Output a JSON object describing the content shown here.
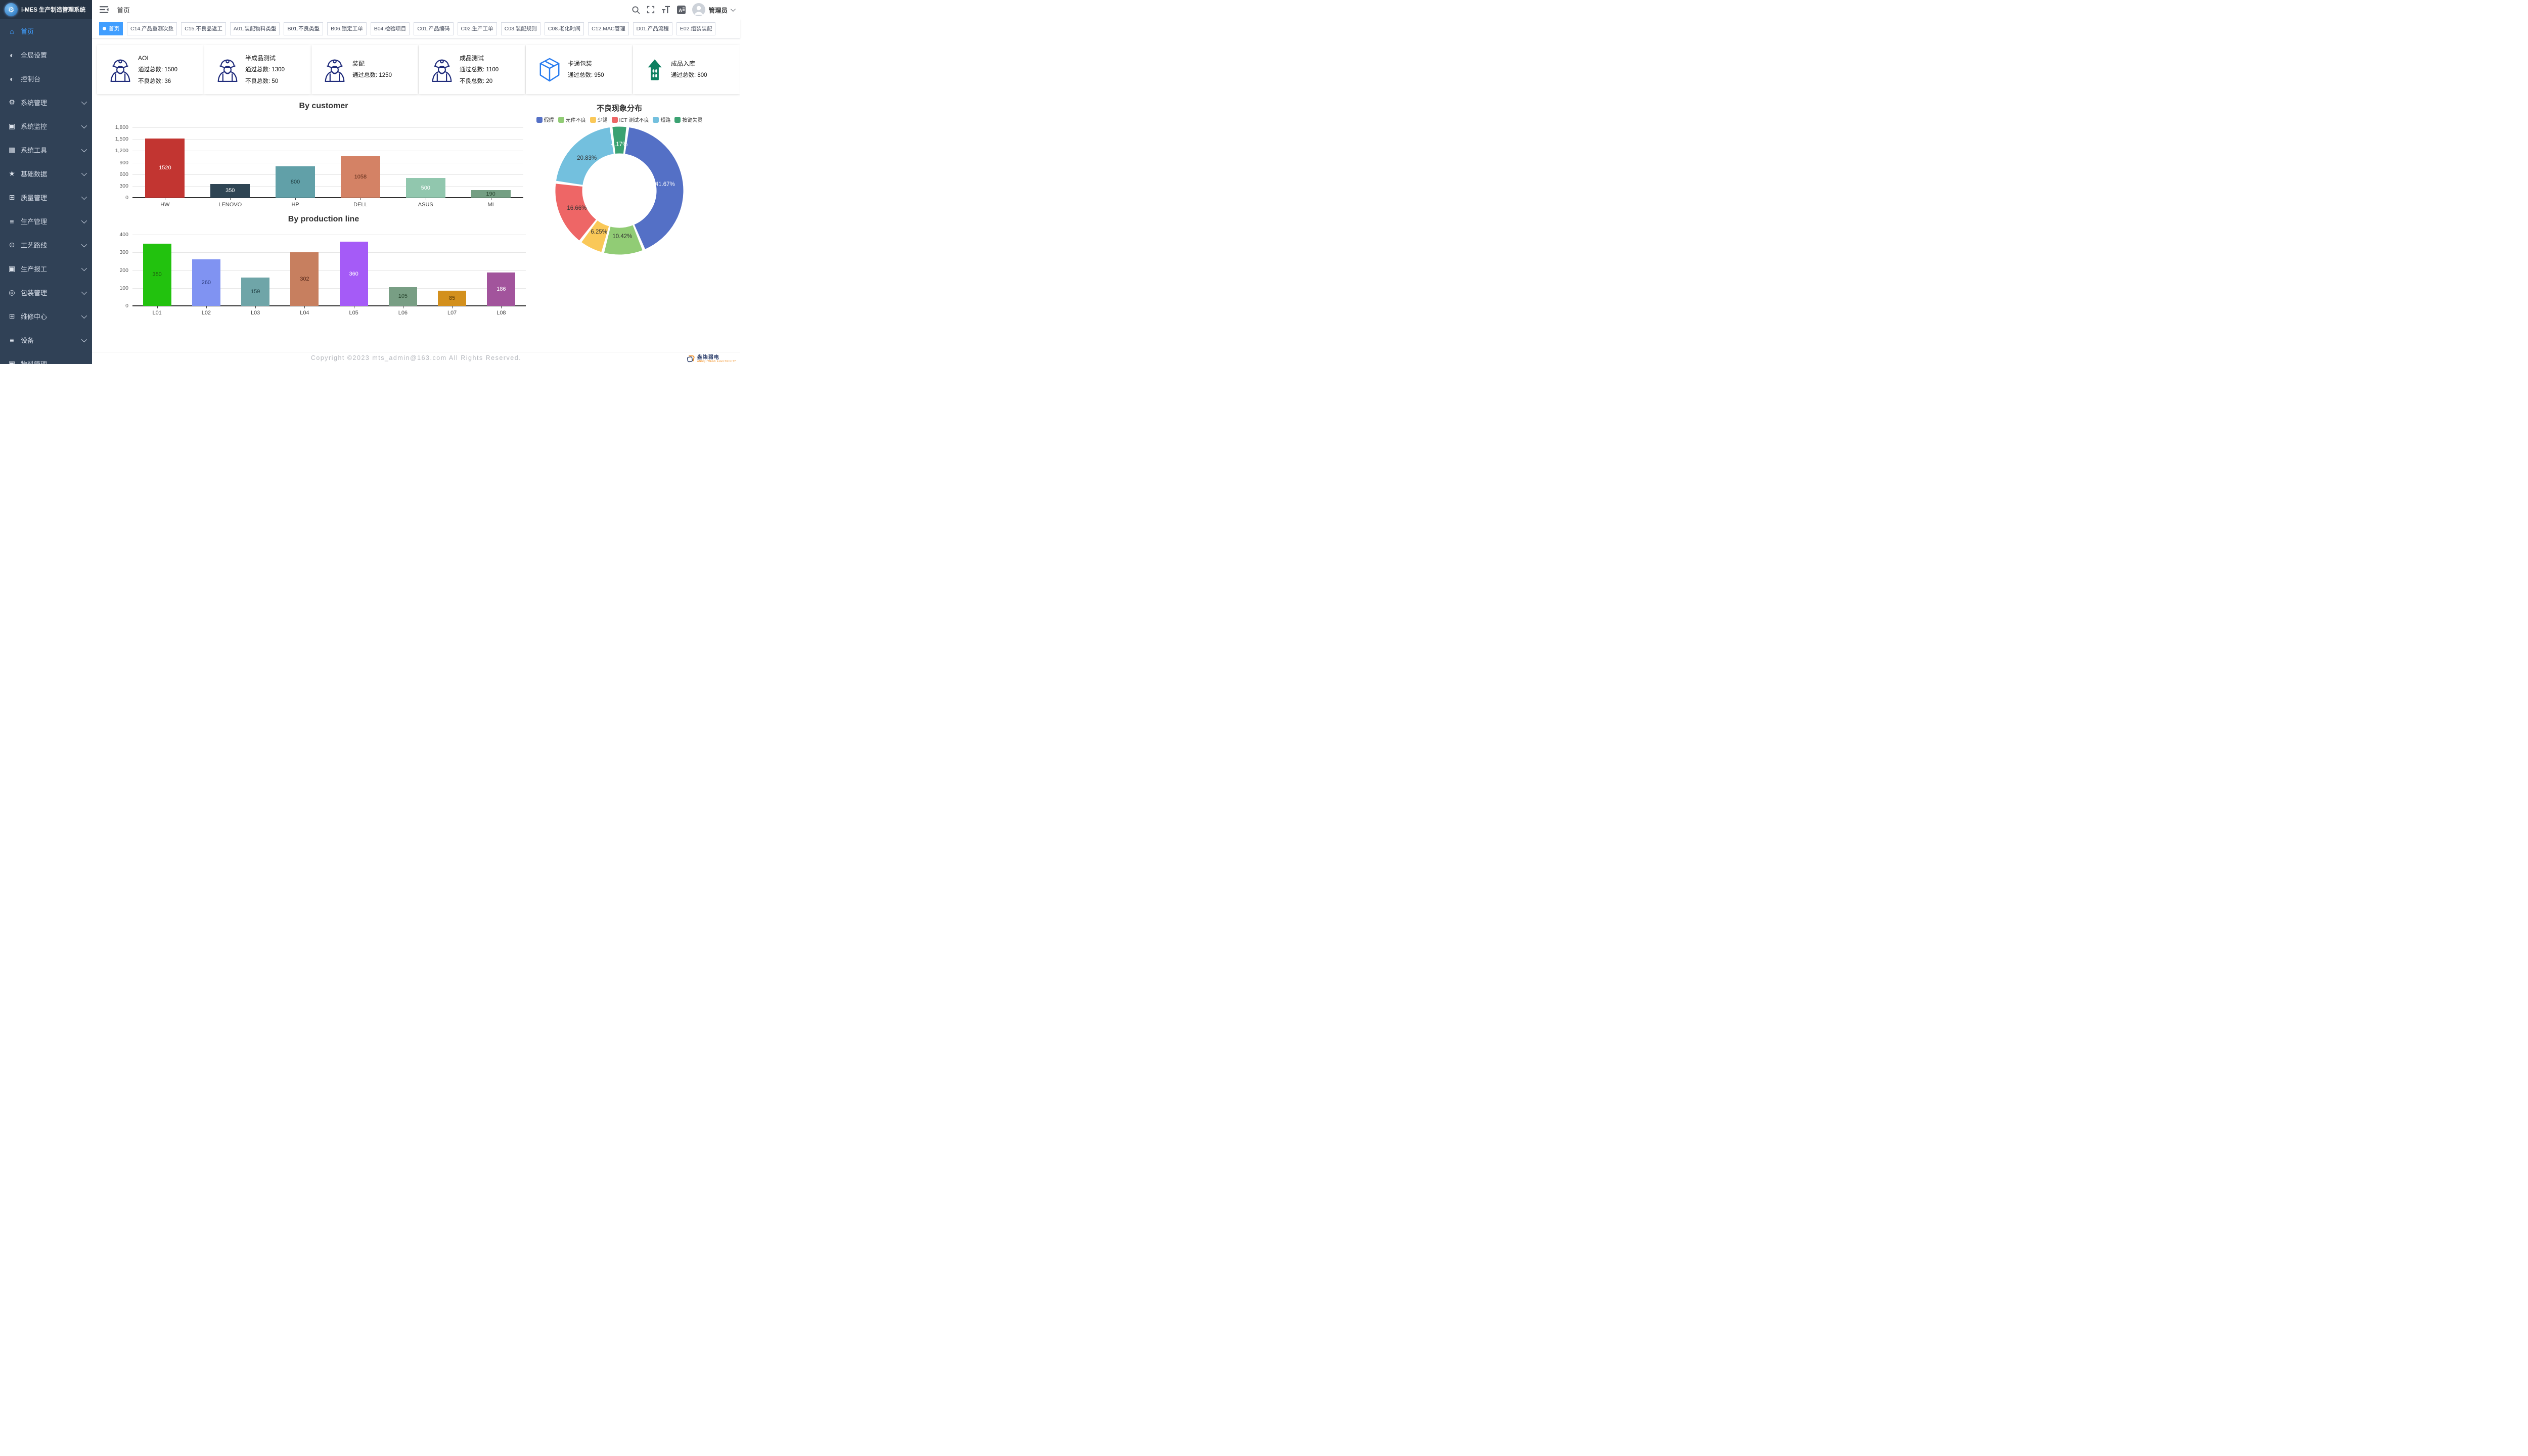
{
  "app": {
    "logo_title": "i-MES 生产制造管理系统",
    "breadcrumb": "首页",
    "user_name": "管理员"
  },
  "topbar_icons": [
    "search",
    "fullscreen",
    "font-size",
    "language"
  ],
  "sidebar": {
    "items": [
      {
        "label": "首页",
        "icon": "home",
        "active": true,
        "expandable": false
      },
      {
        "label": "全局设置",
        "icon": "gauge",
        "active": false,
        "expandable": false
      },
      {
        "label": "控制台",
        "icon": "gauge",
        "active": false,
        "expandable": false
      },
      {
        "label": "系统管理",
        "icon": "gear",
        "active": false,
        "expandable": true
      },
      {
        "label": "系统监控",
        "icon": "monitor",
        "active": false,
        "expandable": true
      },
      {
        "label": "系统工具",
        "icon": "toolbox",
        "active": false,
        "expandable": true
      },
      {
        "label": "基础数据",
        "icon": "star",
        "active": false,
        "expandable": true
      },
      {
        "label": "质量管理",
        "icon": "grid",
        "active": false,
        "expandable": true
      },
      {
        "label": "生产管理",
        "icon": "list",
        "active": false,
        "expandable": true
      },
      {
        "label": "工艺路线",
        "icon": "route",
        "active": false,
        "expandable": true
      },
      {
        "label": "生产报工",
        "icon": "monitor",
        "active": false,
        "expandable": true
      },
      {
        "label": "包装管理",
        "icon": "package",
        "active": false,
        "expandable": true
      },
      {
        "label": "维修中心",
        "icon": "grid",
        "active": false,
        "expandable": true
      },
      {
        "label": "设备",
        "icon": "list",
        "active": false,
        "expandable": true
      },
      {
        "label": "物料管理",
        "icon": "monitor",
        "active": false,
        "expandable": false,
        "cut_off": true
      }
    ]
  },
  "tabs": [
    {
      "label": "首页",
      "active": true
    },
    {
      "label": "C14.产品重测次数",
      "active": false
    },
    {
      "label": "C15.不良品返工",
      "active": false
    },
    {
      "label": "A01.装配物料类型",
      "active": false
    },
    {
      "label": "B01.不良类型",
      "active": false
    },
    {
      "label": "B06.锁定工单",
      "active": false
    },
    {
      "label": "B04.检验项目",
      "active": false
    },
    {
      "label": "C01.产品编码",
      "active": false
    },
    {
      "label": "C02.生产工单",
      "active": false
    },
    {
      "label": "C03.装配规则",
      "active": false
    },
    {
      "label": "C08.老化时间",
      "active": false
    },
    {
      "label": "C12.MAC管理",
      "active": false
    },
    {
      "label": "D01.产品流程",
      "active": false
    },
    {
      "label": "E02.组装装配",
      "active": false
    }
  ],
  "stat_cards": [
    {
      "title": "AOI",
      "icon": "worker",
      "lines": [
        "通过总数: 1500",
        "不良总数: 36"
      ]
    },
    {
      "title": "半成品测试",
      "icon": "worker",
      "lines": [
        "通过总数: 1300",
        "不良总数: 50"
      ]
    },
    {
      "title": "装配",
      "icon": "worker",
      "lines": [
        "通过总数: 1250"
      ]
    },
    {
      "title": "成品测试",
      "icon": "worker",
      "lines": [
        "通过总数: 1100",
        "不良总数: 20"
      ]
    },
    {
      "title": "卡通包装",
      "icon": "box",
      "lines": [
        "通过总数: 950"
      ]
    },
    {
      "title": "成品入库",
      "icon": "warehouse",
      "lines": [
        "通过总数: 800"
      ]
    }
  ],
  "chart_data": [
    {
      "type": "bar",
      "title": "By customer",
      "categories": [
        "HW",
        "LENOVO",
        "HP",
        "DELL",
        "ASUS",
        "MI"
      ],
      "values": [
        1520,
        350,
        800,
        1058,
        500,
        190
      ],
      "colors": [
        "#c23531",
        "#2f4554",
        "#61a0a8",
        "#d48265",
        "#91c7ae",
        "#749f83"
      ],
      "label_colors": [
        "#ffffff",
        "#ffffff",
        "#1e3c40",
        "#5b2a18",
        "#ffffff",
        "#2c4a33"
      ],
      "xlabel": "",
      "ylabel": "",
      "ylim": [
        0,
        1800
      ],
      "yticks": [
        0,
        300,
        600,
        900,
        1200,
        1500,
        1800
      ],
      "grid": true,
      "value_labels": "inside"
    },
    {
      "type": "bar",
      "title": "By production line",
      "categories": [
        "L01",
        "L02",
        "L03",
        "L04",
        "L05",
        "L06",
        "L07",
        "L08"
      ],
      "values": [
        350,
        260,
        159,
        302,
        360,
        105,
        85,
        186
      ],
      "colors": [
        "#22c20e",
        "#8093f2",
        "#6fa5a8",
        "#c77f5f",
        "#a55bf7",
        "#789e84",
        "#d3901d",
        "#a2549c"
      ],
      "label_colors": [
        "#1d4d10",
        "#2a3a7a",
        "#1e3c40",
        "#57281a",
        "#ffffff",
        "#2c4a33",
        "#5a3c07",
        "#ffffff"
      ],
      "xlabel": "",
      "ylabel": "",
      "ylim": [
        0,
        400
      ],
      "yticks": [
        0,
        100,
        200,
        300,
        400
      ],
      "grid": true,
      "value_labels": "inside"
    },
    {
      "type": "pie",
      "title": "不良现象分布",
      "donut": true,
      "start_angle": -7.5,
      "slices": [
        {
          "name": "按键失灵",
          "percent": 4.17,
          "label": "4.17%",
          "color": "#3ba272",
          "label_color": "#ffffff"
        },
        {
          "name": "假焊",
          "percent": 41.67,
          "label": "41.67%",
          "color": "#5470c6",
          "label_color": "#ffffff"
        },
        {
          "name": "元件不良",
          "percent": 10.42,
          "label": "10.42%",
          "color": "#91cc75",
          "label_color": "#333333"
        },
        {
          "name": "少锡",
          "percent": 6.25,
          "label": "6.25%",
          "color": "#fac858",
          "label_color": "#333333"
        },
        {
          "name": "ICT 测试不良",
          "percent": 16.66,
          "label": "16.66%",
          "color": "#ee6666",
          "label_color": "#333333"
        },
        {
          "name": "短路",
          "percent": 20.83,
          "label": "20.83%",
          "color": "#73c0de",
          "label_color": "#333333"
        }
      ],
      "legend_order": [
        "假焊",
        "元件不良",
        "少锡",
        "ICT 测试不良",
        "短路",
        "按键失灵"
      ],
      "legend_position": "top"
    }
  ],
  "footer": {
    "copyright": "Copyright ©2023 mts_admin@163.com All Rights Reserved.",
    "badge_text": "盎柒弱电",
    "badge_subtext": "ANGQI WEAK ELECTRICITY"
  },
  "colors": {
    "accent": "#409eff",
    "sidebar_bg": "#304156",
    "sidebar_logo_bg": "#263445",
    "worker_icon": "#1f2b7b",
    "box_icon": "#2a7df0",
    "warehouse_icon": "#0e8060"
  }
}
